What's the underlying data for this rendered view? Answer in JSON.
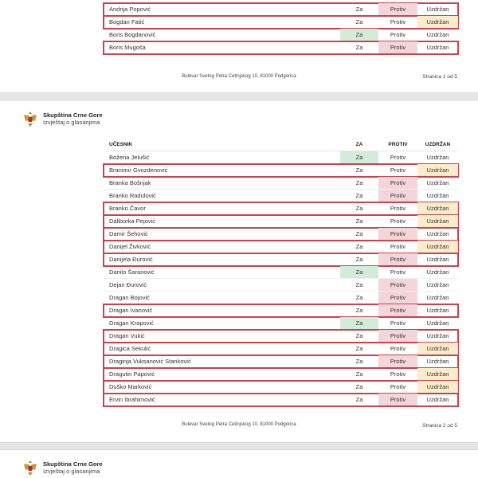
{
  "org": {
    "name": "Skupština Crne Gore",
    "subtitle": "Izvještaj o glasanjima"
  },
  "table_headers": {
    "participant": "UČESNIK",
    "za": "ZA",
    "protiv": "PROTIV",
    "uzdrzan": "UZDRŽAN"
  },
  "labels": {
    "za": "Za",
    "protiv": "Protiv",
    "uzdrzan": "Uzdržan"
  },
  "footer_address": "Bulevar Svetog Petra Cetinjskog 10, 81000 Podgorica",
  "colors": {
    "za": "#d3ecd9",
    "protiv": "#f3d5da",
    "uzdrzan": "#fbedcc",
    "highlight_box": "#d0404a"
  },
  "pages": [
    {
      "page_label": "Stranica 1 od 5",
      "rows": [
        {
          "name": "Andrija Popović",
          "vote": "protiv",
          "boxed": true
        },
        {
          "name": "Bogdan Fatić",
          "vote": "uzdrzan",
          "boxed": true
        },
        {
          "name": "Boris Bogdanović",
          "vote": "za",
          "boxed": false
        },
        {
          "name": "Boris Mugoša",
          "vote": "protiv",
          "boxed": true
        }
      ]
    },
    {
      "page_label": "Stranica 2 od 5",
      "rows": [
        {
          "name": "Božena Jelušić",
          "vote": "za",
          "boxed": false
        },
        {
          "name": "Branimir Gvozdenović",
          "vote": "uzdrzan",
          "boxed": true
        },
        {
          "name": "Branka Bošnjak",
          "vote": "protiv",
          "boxed": false
        },
        {
          "name": "Branko Radulović",
          "vote": "protiv",
          "boxed": false
        },
        {
          "name": "Branko Čavor",
          "vote": "uzdrzan",
          "boxed": true
        },
        {
          "name": "Daliborka Pejović",
          "vote": "uzdrzan",
          "boxed": true
        },
        {
          "name": "Damir Šehović",
          "vote": "protiv",
          "boxed": true
        },
        {
          "name": "Danijel Živković",
          "vote": "uzdrzan",
          "boxed": true
        },
        {
          "name": "Danijela Đurović",
          "vote": "protiv",
          "boxed": true
        },
        {
          "name": "Danilo Šaranović",
          "vote": "za",
          "boxed": false
        },
        {
          "name": "Dejan Đurović",
          "vote": "protiv",
          "boxed": false
        },
        {
          "name": "Dragan Bojović",
          "vote": "protiv",
          "boxed": false
        },
        {
          "name": "Dragan Ivanović",
          "vote": "protiv",
          "boxed": true
        },
        {
          "name": "Dragan Krapović",
          "vote": "za",
          "boxed": false
        },
        {
          "name": "Dragan Vukić",
          "vote": "protiv",
          "boxed": true
        },
        {
          "name": "Dragica Sekulić",
          "vote": "uzdrzan",
          "boxed": true
        },
        {
          "name": "Draginja Vuksanović Stanković",
          "vote": "protiv",
          "boxed": true
        },
        {
          "name": "Dragutin Papović",
          "vote": "uzdrzan",
          "boxed": true
        },
        {
          "name": "Duško Marković",
          "vote": "uzdrzan",
          "boxed": true
        },
        {
          "name": "Ervin Ibrahimović",
          "vote": "protiv",
          "boxed": true
        }
      ]
    }
  ]
}
